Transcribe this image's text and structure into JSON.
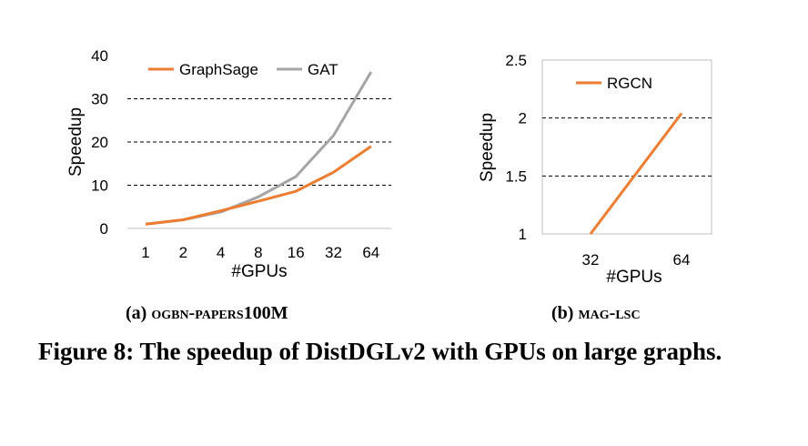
{
  "chart_data": [
    {
      "type": "line",
      "xlabel": "#GPUs",
      "ylabel": "Speedup",
      "categories": [
        "1",
        "2",
        "4",
        "8",
        "16",
        "32",
        "64"
      ],
      "ylim": [
        0,
        40
      ],
      "yticks": [
        "0",
        "10",
        "20",
        "30",
        "40"
      ],
      "grid": "horizontal dashed",
      "legend_position": "top-left",
      "series": [
        {
          "name": "GraphSage",
          "color": "#ED7D31",
          "values": [
            1,
            2,
            4.1,
            6.3,
            8.6,
            13,
            19
          ]
        },
        {
          "name": "GAT",
          "color": "#A5A5A5",
          "values": [
            1,
            2,
            3.8,
            7.3,
            12,
            21.5,
            36.2
          ]
        }
      ]
    },
    {
      "type": "line",
      "xlabel": "#GPUs",
      "ylabel": "Speedup",
      "categories": [
        "32",
        "64"
      ],
      "ylim": [
        1,
        2.5
      ],
      "yticks": [
        "1",
        "1.5",
        "2",
        "2.5"
      ],
      "grid": "horizontal dashed",
      "legend_position": "top-left",
      "series": [
        {
          "name": "RGCN",
          "color": "#ED7D31",
          "values": [
            1,
            2.04
          ]
        }
      ]
    }
  ],
  "captions": {
    "a_prefix": "(a)",
    "a_name": "ogbn-papers",
    "a_suffix": "100M",
    "b_prefix": "(b)",
    "b_name": "mag-lsc",
    "figure": "Figure 8: The speedup of DistDGLv2 with GPUs on large graphs."
  }
}
